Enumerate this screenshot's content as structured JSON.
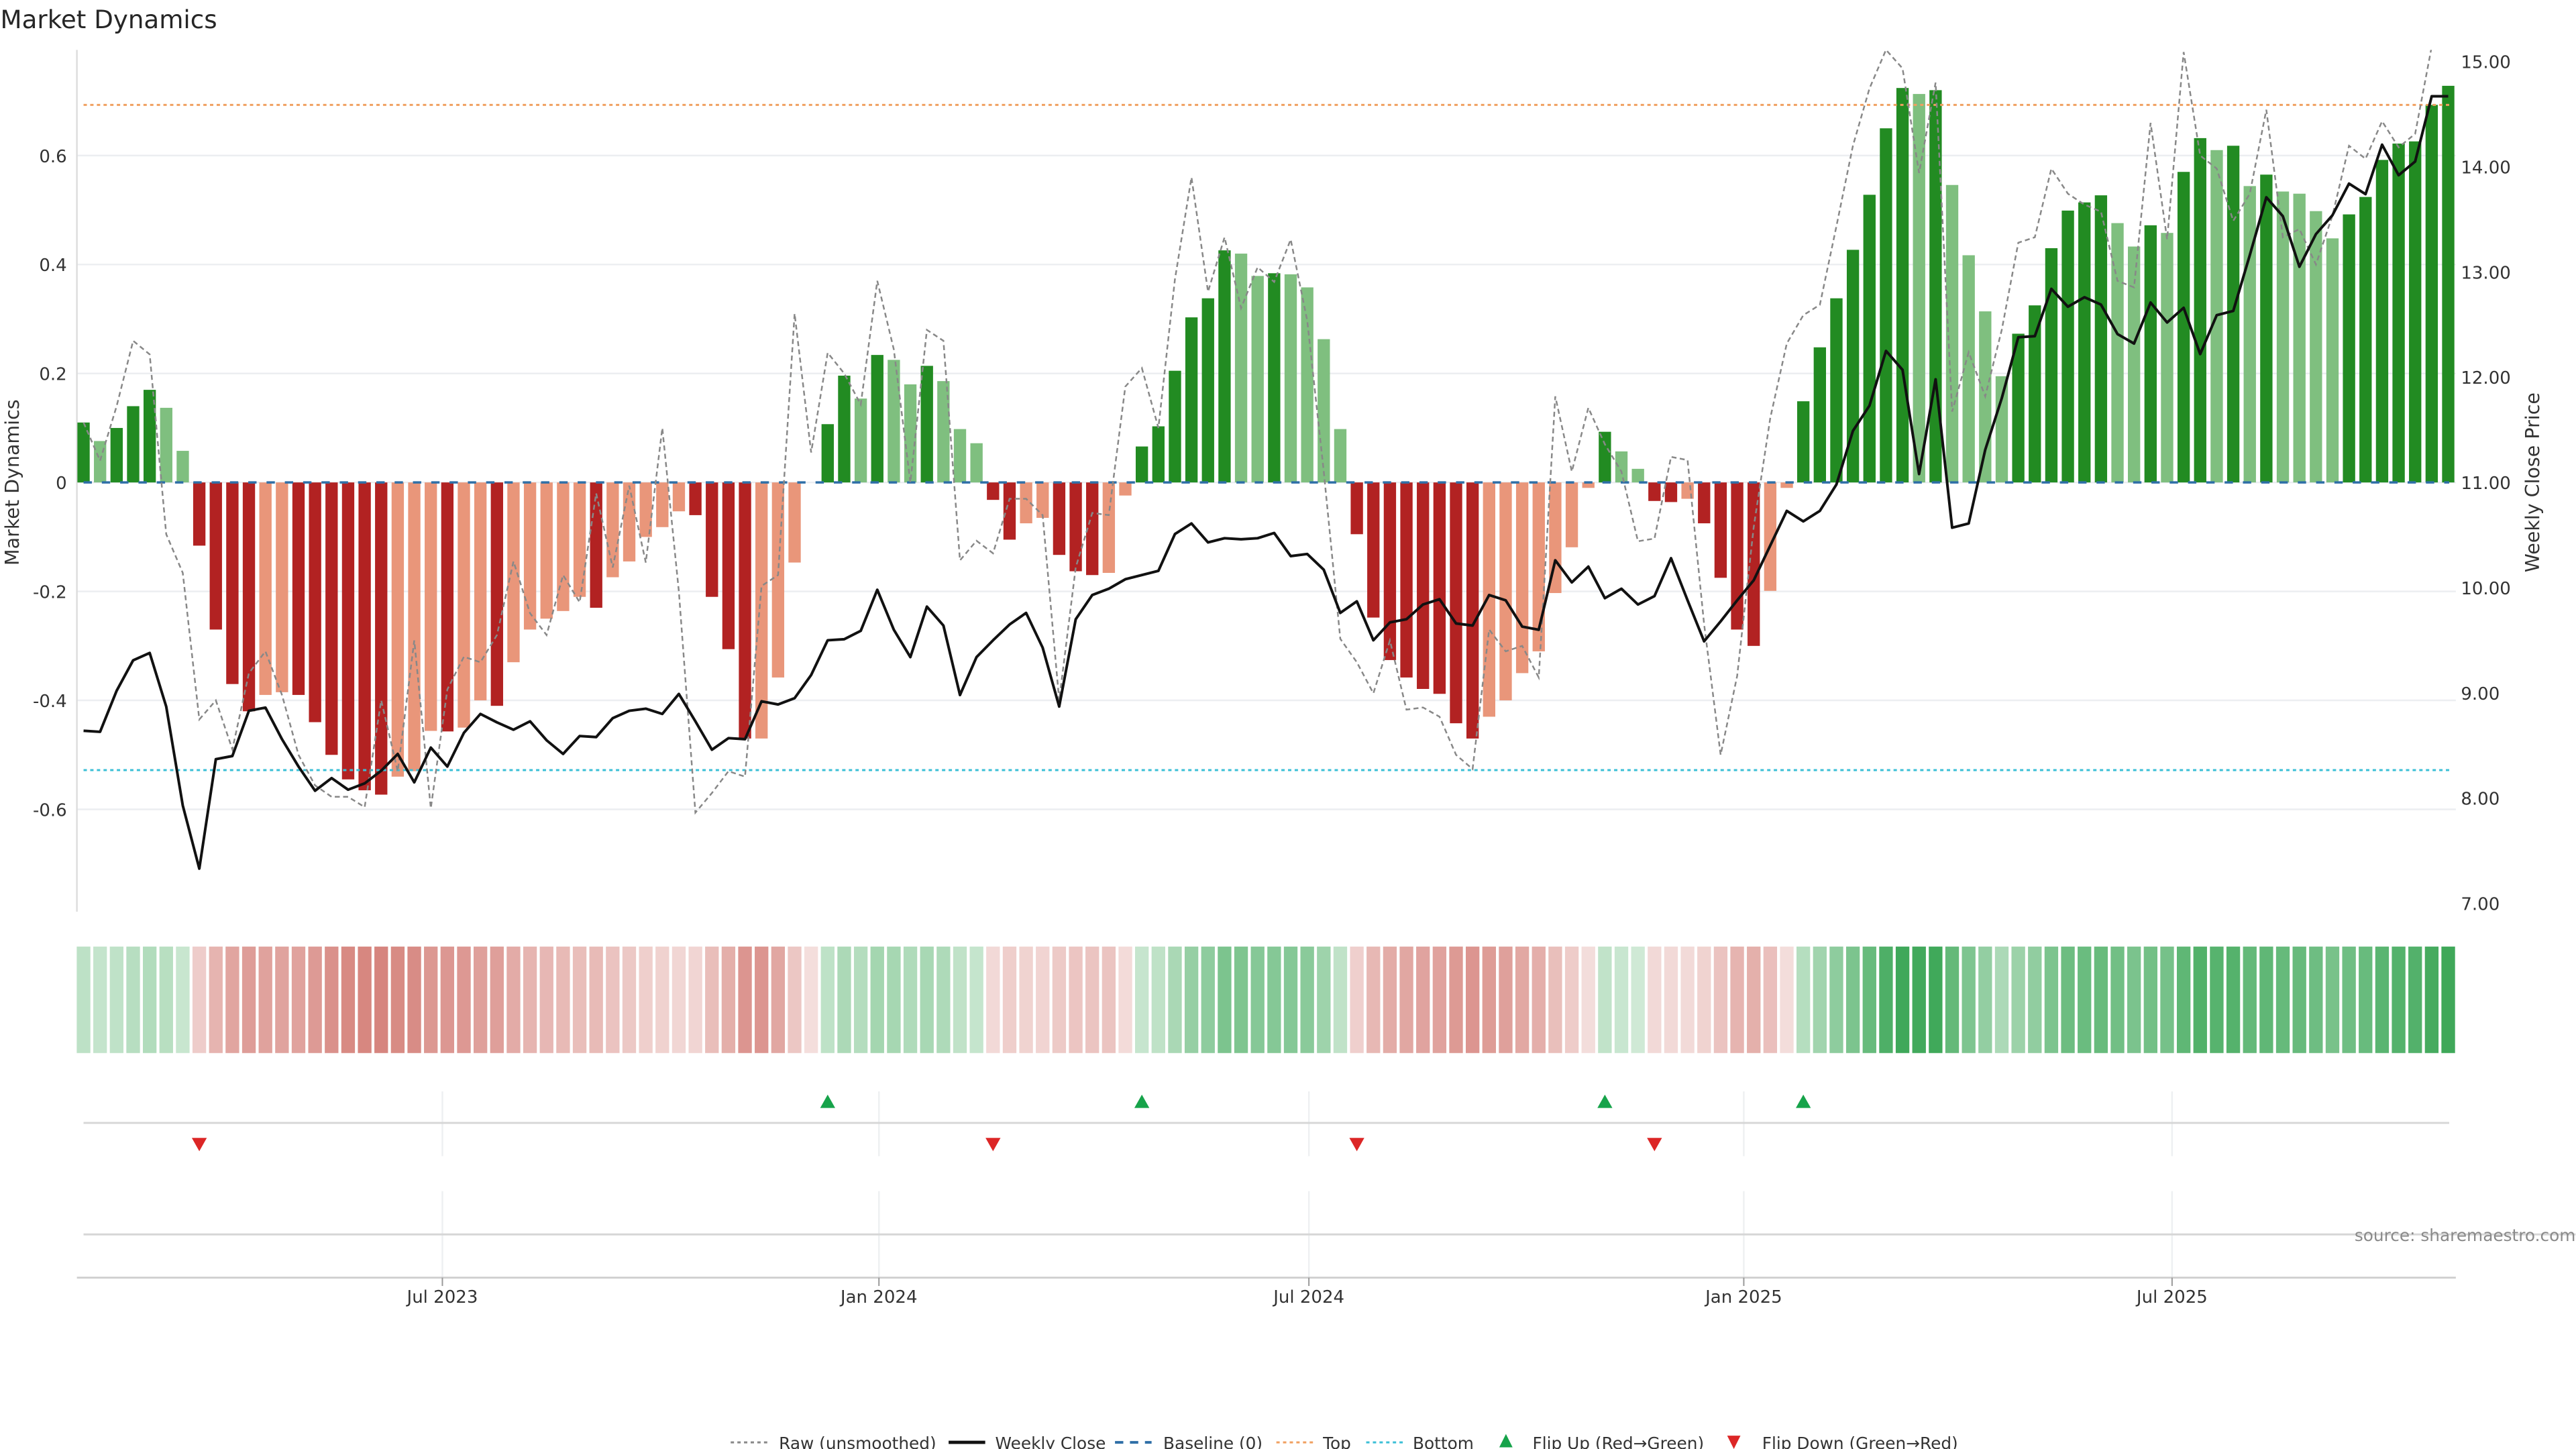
{
  "title": "Market Dynamics",
  "source": "source: sharemaestro.com",
  "chart_data": {
    "type": "bar",
    "title": "Market Dynamics",
    "ylabel": "Market Dynamics",
    "y2label": "Weekly Close Price",
    "xlabel": "",
    "ylim": [
      -0.79,
      0.79
    ],
    "y2lim": [
      6.92,
      15.11
    ],
    "grid": true,
    "legend_position": "bottom-center",
    "x_ticks": [
      {
        "label": "Jul 2023",
        "week": 21.7
      },
      {
        "label": "Jan 2024",
        "week": 48.1
      },
      {
        "label": "Jul 2024",
        "week": 74.1
      },
      {
        "label": "Jan 2025",
        "week": 100.4
      },
      {
        "label": "Jul 2025",
        "week": 126.3
      }
    ],
    "left_ticks": [
      {
        "value": 0.6,
        "label": "0.6"
      },
      {
        "value": 0.4,
        "label": "0.4"
      },
      {
        "value": 0.2,
        "label": "0.2"
      },
      {
        "value": 0,
        "label": "0"
      },
      {
        "value": -0.2,
        "label": "-0.2"
      },
      {
        "value": -0.4,
        "label": "-0.4"
      },
      {
        "value": -0.6,
        "label": "-0.6"
      }
    ],
    "right_ticks": [
      {
        "value": 15,
        "label": "15.00"
      },
      {
        "value": 14,
        "label": "14.00"
      },
      {
        "value": 13,
        "label": "13.00"
      },
      {
        "value": 12,
        "label": "12.00"
      },
      {
        "value": 11,
        "label": "11.00"
      },
      {
        "value": 10,
        "label": "10.00"
      },
      {
        "value": 9,
        "label": "9.00"
      },
      {
        "value": 8,
        "label": "8.00"
      },
      {
        "value": 7,
        "label": "7.00"
      }
    ],
    "top_level": 0.693,
    "bottom_level": -0.528,
    "baseline": 0,
    "values": [
      0.11,
      0.076,
      0.1,
      0.14,
      0.17,
      0.137,
      0.058,
      -0.116,
      -0.27,
      -0.37,
      -0.42,
      -0.39,
      -0.385,
      -0.39,
      -0.44,
      -0.5,
      -0.545,
      -0.565,
      -0.573,
      -0.54,
      -0.53,
      -0.456,
      -0.457,
      -0.45,
      -0.4,
      -0.41,
      -0.33,
      -0.27,
      -0.25,
      -0.236,
      -0.21,
      -0.23,
      -0.174,
      -0.145,
      -0.1,
      -0.082,
      -0.053,
      -0.06,
      -0.21,
      -0.306,
      -0.47,
      -0.47,
      -0.358,
      -0.147,
      0,
      0.107,
      0.196,
      0.154,
      0.234,
      0.225,
      0.18,
      0.214,
      0.186,
      0.098,
      0.072,
      -0.032,
      -0.105,
      -0.075,
      -0.065,
      -0.133,
      -0.163,
      -0.17,
      -0.166,
      -0.024,
      0.066,
      0.103,
      0.205,
      0.303,
      0.338,
      0.426,
      0.42,
      0.379,
      0.384,
      0.382,
      0.358,
      0.263,
      0.098,
      -0.095,
      -0.248,
      -0.326,
      -0.358,
      -0.379,
      -0.388,
      -0.442,
      -0.47,
      -0.43,
      -0.4,
      -0.35,
      -0.31,
      -0.203,
      -0.119,
      -0.01,
      0.093,
      0.057,
      0.025,
      -0.034,
      -0.036,
      -0.03,
      -0.075,
      -0.175,
      -0.27,
      -0.3,
      -0.199,
      -0.01,
      0.149,
      0.248,
      0.338,
      0.427,
      0.528,
      0.65,
      0.724,
      0.713,
      0.72,
      0.546,
      0.417,
      0.314,
      0.195,
      0.273,
      0.325,
      0.43,
      0.499,
      0.514,
      0.527,
      0.476,
      0.433,
      0.472,
      0.458,
      0.57,
      0.632,
      0.61,
      0.618,
      0.544,
      0.565,
      0.534,
      0.53,
      0.498,
      0.448,
      0.492,
      0.524,
      0.592,
      0.622,
      0.626,
      0.693,
      0.728
    ],
    "strong": [
      1,
      0,
      1,
      1,
      1,
      0,
      0,
      1,
      1,
      1,
      1,
      0,
      0,
      1,
      1,
      1,
      1,
      1,
      1,
      0,
      0,
      0,
      1,
      0,
      0,
      1,
      0,
      0,
      0,
      0,
      0,
      1,
      0,
      0,
      0,
      0,
      0,
      1,
      1,
      1,
      1,
      0,
      0,
      0,
      0,
      1,
      1,
      0,
      1,
      0,
      0,
      1,
      0,
      0,
      0,
      1,
      1,
      0,
      0,
      1,
      1,
      1,
      0,
      0,
      1,
      1,
      1,
      1,
      1,
      1,
      0,
      0,
      1,
      0,
      0,
      0,
      0,
      1,
      1,
      1,
      1,
      1,
      1,
      1,
      1,
      0,
      0,
      0,
      0,
      0,
      0,
      0,
      1,
      0,
      0,
      1,
      1,
      0,
      1,
      1,
      1,
      1,
      0,
      0,
      1,
      1,
      1,
      1,
      1,
      1,
      1,
      0,
      1,
      0,
      0,
      0,
      0,
      1,
      1,
      1,
      1,
      1,
      1,
      0,
      0,
      1,
      0,
      1,
      1,
      0,
      1,
      0,
      1,
      0,
      0,
      0,
      0,
      1,
      1,
      1,
      1,
      1,
      1,
      1
    ],
    "raw": [
      0.11,
      0.04,
      0.14,
      0.26,
      0.235,
      -0.095,
      -0.166,
      -0.435,
      -0.4,
      -0.49,
      -0.35,
      -0.31,
      -0.39,
      -0.5,
      -0.556,
      -0.577,
      -0.577,
      -0.596,
      -0.4,
      -0.53,
      -0.29,
      -0.598,
      -0.38,
      -0.32,
      -0.33,
      -0.28,
      -0.145,
      -0.24,
      -0.28,
      -0.17,
      -0.22,
      -0.02,
      -0.156,
      -0.006,
      -0.147,
      0.1,
      -0.2,
      -0.606,
      -0.57,
      -0.53,
      -0.54,
      -0.19,
      -0.17,
      0.31,
      0.055,
      0.238,
      0.2,
      0.143,
      0.37,
      0.244,
      0.0,
      0.28,
      0.26,
      -0.143,
      -0.107,
      -0.13,
      -0.03,
      -0.03,
      -0.06,
      -0.4,
      -0.156,
      -0.056,
      -0.06,
      0.176,
      0.21,
      0.1,
      0.373,
      0.56,
      0.35,
      0.45,
      0.32,
      0.395,
      0.368,
      0.446,
      0.297,
      0.02,
      -0.287,
      -0.33,
      -0.387,
      -0.29,
      -0.417,
      -0.413,
      -0.43,
      -0.5,
      -0.526,
      -0.27,
      -0.31,
      -0.3,
      -0.358,
      0.158,
      0.02,
      0.137,
      0.07,
      0.02,
      -0.108,
      -0.103,
      0.047,
      0.041,
      -0.26,
      -0.5,
      -0.355,
      -0.082,
      0.118,
      0.255,
      0.307,
      0.326,
      0.47,
      0.618,
      0.723,
      0.794,
      0.76,
      0.568,
      0.734,
      0.13,
      0.239,
      0.158,
      0.28,
      0.44,
      0.45,
      0.576,
      0.53,
      0.51,
      0.497,
      0.37,
      0.358,
      0.66,
      0.446,
      0.79,
      0.6,
      0.576,
      0.48,
      0.53,
      0.684,
      0.45,
      0.465,
      0.4,
      0.49,
      0.618,
      0.594,
      0.663,
      0.615,
      0.64,
      0.8,
      0.85
    ],
    "close": [
      8.64,
      8.63,
      9.02,
      9.31,
      9.38,
      8.87,
      7.93,
      7.33,
      8.37,
      8.4,
      8.83,
      8.86,
      8.56,
      8.3,
      8.07,
      8.19,
      8.08,
      8.14,
      8.26,
      8.42,
      8.15,
      8.48,
      8.3,
      8.62,
      8.8,
      8.72,
      8.65,
      8.73,
      8.55,
      8.42,
      8.59,
      8.58,
      8.76,
      8.83,
      8.85,
      8.8,
      8.99,
      8.73,
      8.46,
      8.57,
      8.56,
      8.92,
      8.89,
      8.95,
      9.17,
      9.5,
      9.51,
      9.59,
      9.98,
      9.6,
      9.34,
      9.82,
      9.64,
      8.98,
      9.34,
      9.5,
      9.65,
      9.76,
      9.43,
      8.87,
      9.7,
      9.93,
      9.99,
      10.08,
      10.12,
      10.16,
      10.51,
      10.61,
      10.43,
      10.47,
      10.46,
      10.47,
      10.52,
      10.3,
      10.32,
      10.17,
      9.76,
      9.87,
      9.5,
      9.67,
      9.7,
      9.84,
      9.89,
      9.66,
      9.64,
      9.93,
      9.88,
      9.63,
      9.6,
      10.26,
      10.05,
      10.2,
      9.9,
      9.99,
      9.84,
      9.92,
      10.28,
      9.88,
      9.49,
      9.68,
      9.88,
      10.07,
      10.4,
      10.73,
      10.63,
      10.73,
      10.98,
      11.49,
      11.73,
      12.25,
      12.07,
      11.08,
      11.98,
      10.57,
      10.61,
      11.31,
      11.8,
      12.38,
      12.39,
      12.84,
      12.67,
      12.76,
      12.69,
      12.41,
      12.32,
      12.71,
      12.52,
      12.66,
      12.22,
      12.59,
      12.63,
      13.16,
      13.71,
      13.53,
      13.05,
      13.36,
      13.54,
      13.84,
      13.74,
      14.21,
      13.92,
      14.05,
      14.67,
      14.67
    ],
    "flip_up_weeks": [
      45,
      64,
      92,
      104
    ],
    "flip_down_weeks": [
      7,
      55,
      77,
      95
    ],
    "colors": {
      "strong_up": "#228b22",
      "weak_up": "#7fbf7f",
      "strong_down": "#b22222",
      "weak_down": "#e9967a",
      "heat_up": "#3aa655",
      "heat_down": "#cd6a62",
      "raw": "#888888",
      "close": "#111111",
      "baseline": "#2f6fa7",
      "top": "#f0a060",
      "bottom": "#3bbfd6",
      "flip_up": "#16a34a",
      "flip_down": "#dc2626"
    }
  },
  "legend": {
    "raw": "Raw (unsmoothed)",
    "close": "Weekly Close",
    "baseline": "Baseline (0)",
    "top": "Top",
    "bottom": "Bottom",
    "flip_up": "Flip Up (Red→Green)",
    "flip_down": "Flip Down (Green→Red)"
  }
}
